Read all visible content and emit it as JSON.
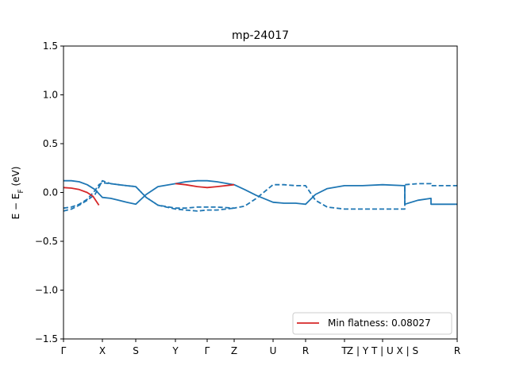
{
  "chart_data": {
    "type": "line",
    "title": "mp-24017",
    "ylabel": "E − E_F (eV)",
    "ylabel_main": "E − E",
    "ylabel_sub": "F",
    "ylabel_unit": " (eV)",
    "xlabel": "",
    "ylim": [
      -1.5,
      1.5
    ],
    "xlim": [
      0,
      1
    ],
    "yticks": [
      -1.5,
      -1.0,
      -0.5,
      0.0,
      0.5,
      1.0,
      1.5
    ],
    "ytick_labels": [
      "−1.5",
      "−1.0",
      "−0.5",
      "0.0",
      "0.5",
      "1.0",
      "1.5"
    ],
    "xticks": [
      {
        "x": 0.0,
        "label": "Γ"
      },
      {
        "x": 0.0988,
        "label": "X"
      },
      {
        "x": 0.1835,
        "label": "S"
      },
      {
        "x": 0.2843,
        "label": "Y"
      },
      {
        "x": 0.3649,
        "label": "Γ"
      },
      {
        "x": 0.4335,
        "label": "Z"
      },
      {
        "x": 0.5323,
        "label": "U"
      },
      {
        "x": 0.6149,
        "label": "R"
      },
      {
        "x": 0.7137,
        "label": "T"
      },
      {
        "x": 0.8105,
        "label": "Z | Y T | U X | S"
      },
      {
        "x": 1.0,
        "label": "R"
      }
    ],
    "grid": false,
    "legend": {
      "placement": "lower-right",
      "entries": [
        {
          "label": "Min flatness: 0.08027",
          "color": "#d62728"
        }
      ]
    },
    "colors": {
      "band": "#1f77b4",
      "highlight": "#d62728"
    },
    "segment_breaks": [
      0.8669,
      0.9334
    ],
    "series": [
      {
        "style": "solid",
        "color": "#1f77b4",
        "x": [
          0.0,
          0.02,
          0.04,
          0.06,
          0.08,
          0.0988,
          0.12,
          0.14,
          0.16,
          0.1835,
          0.21,
          0.24,
          0.2843,
          0.31,
          0.34,
          0.3649,
          0.39,
          0.4335,
          0.46,
          0.49,
          0.5323,
          0.56,
          0.59,
          0.6149,
          0.64,
          0.67,
          0.7137,
          0.76,
          0.8105,
          0.8669,
          0.8669,
          0.9,
          0.9334,
          0.9334,
          1.0
        ],
        "y": [
          0.12,
          0.12,
          0.11,
          0.08,
          0.03,
          -0.05,
          -0.06,
          -0.08,
          -0.1,
          -0.12,
          -0.02,
          0.06,
          0.09,
          0.11,
          0.12,
          0.12,
          0.11,
          0.08,
          0.03,
          -0.03,
          -0.1,
          -0.11,
          -0.11,
          -0.12,
          -0.02,
          0.04,
          0.07,
          0.07,
          0.08,
          0.07,
          -0.12,
          -0.08,
          -0.06,
          -0.12,
          -0.12
        ]
      },
      {
        "style": "dashed",
        "color": "#1f77b4",
        "x": [
          0.0,
          0.02,
          0.04,
          0.06,
          0.08,
          0.09,
          0.0988,
          0.12,
          0.14,
          0.16,
          0.1835,
          0.21,
          0.24,
          0.2843,
          0.31,
          0.34,
          0.3649,
          0.39,
          0.4335,
          0.46,
          0.49,
          0.5323,
          0.56,
          0.59,
          0.6149,
          0.64,
          0.67,
          0.7137,
          0.76,
          0.8105,
          0.8669,
          0.8669,
          0.9,
          0.9334,
          0.9334,
          1.0
        ],
        "y": [
          -0.16,
          -0.15,
          -0.12,
          -0.07,
          0.02,
          0.08,
          0.1,
          0.09,
          0.08,
          0.07,
          0.06,
          -0.05,
          -0.13,
          -0.16,
          -0.16,
          -0.15,
          -0.15,
          -0.15,
          -0.16,
          -0.14,
          -0.06,
          0.08,
          0.08,
          0.07,
          0.07,
          -0.08,
          -0.15,
          -0.17,
          -0.17,
          -0.17,
          -0.17,
          0.08,
          0.09,
          0.09,
          0.07,
          0.07
        ]
      },
      {
        "style": "dashed",
        "color": "#1f77b4",
        "x": [
          0.0,
          0.02,
          0.04,
          0.06,
          0.08,
          0.0988,
          0.12,
          0.14,
          0.16,
          0.1835,
          0.21,
          0.24,
          0.2843,
          0.31,
          0.34,
          0.3649,
          0.39,
          0.4335
        ],
        "y": [
          -0.19,
          -0.17,
          -0.13,
          -0.08,
          -0.02,
          0.12,
          0.09,
          0.08,
          0.07,
          0.06,
          -0.05,
          -0.13,
          -0.17,
          -0.18,
          -0.19,
          -0.18,
          -0.18,
          -0.16
        ]
      },
      {
        "style": "solid",
        "color": "#d62728",
        "x": [
          0.0,
          0.02,
          0.04,
          0.06,
          0.075,
          0.09
        ],
        "y": [
          0.05,
          0.045,
          0.03,
          0.0,
          -0.04,
          -0.13
        ]
      },
      {
        "style": "solid",
        "color": "#d62728",
        "x": [
          0.2843,
          0.31,
          0.34,
          0.3649,
          0.39,
          0.4335
        ],
        "y": [
          0.09,
          0.08,
          0.06,
          0.05,
          0.06,
          0.08
        ]
      }
    ]
  }
}
